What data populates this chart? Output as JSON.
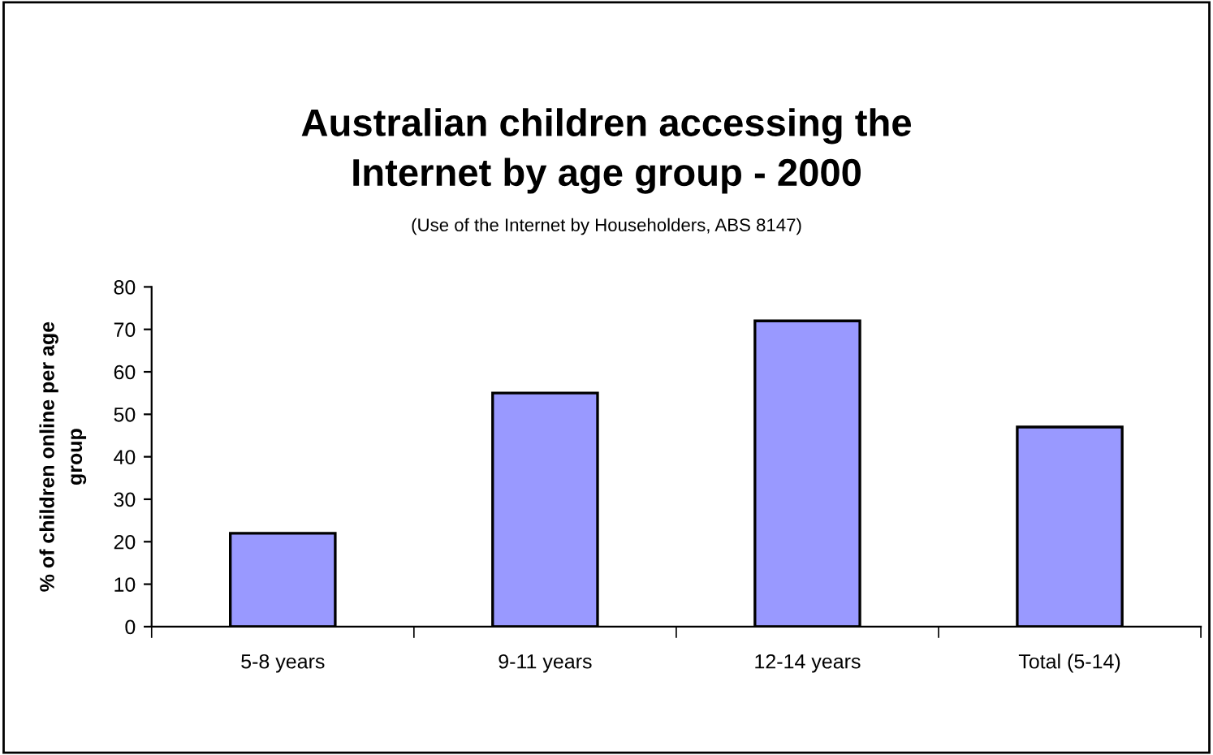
{
  "chart_data": {
    "type": "bar",
    "title": "Australian children accessing the\nInternet by age group - 2000",
    "subtitle": "(Use of the Internet by Householders, ABS 8147)",
    "ylabel": "% of children online per age\ngroup",
    "categories": [
      "5-8 years",
      "9-11 years",
      "12-14 years",
      "Total (5-14)"
    ],
    "values": [
      22,
      55,
      72,
      47
    ],
    "color": "#9999ff",
    "ylim": [
      0,
      80
    ],
    "yticks": [
      0,
      10,
      20,
      30,
      40,
      50,
      60,
      70,
      80
    ],
    "grid": false,
    "legend": false
  }
}
